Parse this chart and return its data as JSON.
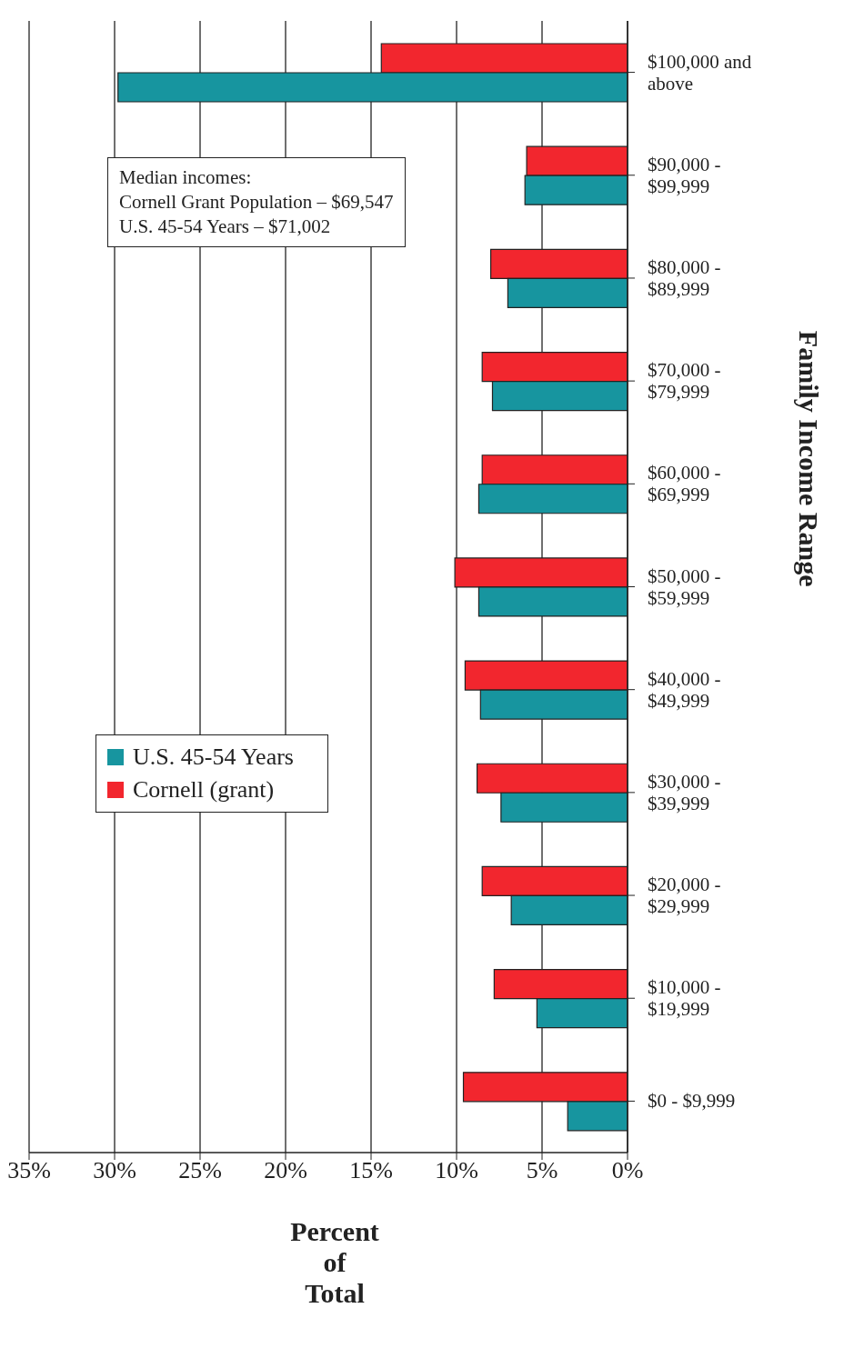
{
  "chart_data": {
    "type": "bar",
    "orientation": "horizontal",
    "xlabel": "Percent\nof\nTotal",
    "ylabel": "Family Income Range",
    "categories": [
      "$100,000 and above",
      "$90,000 - $99,999",
      "$80,000 - $89,999",
      "$70,000 - $79,999",
      "$60,000 - $69,999",
      "$50,000 - $59,999",
      "$40,000 - $49,999",
      "$30,000 - $39,999",
      "$20,000 - $29,999",
      "$10,000 - $19,999",
      "$0 - $9,999"
    ],
    "series": [
      {
        "name": "U.S. 45-54 Years",
        "color": "#17959f",
        "values": [
          29.8,
          6.0,
          7.0,
          7.9,
          8.7,
          8.7,
          8.6,
          7.4,
          6.8,
          5.3,
          3.5
        ]
      },
      {
        "name": "Cornell (grant)",
        "color": "#f2262e",
        "values": [
          14.4,
          5.9,
          8.0,
          8.5,
          8.5,
          10.1,
          9.5,
          8.8,
          8.5,
          7.8,
          9.6
        ]
      }
    ],
    "xlim": [
      35,
      0
    ],
    "xticks": [
      {
        "value": 35,
        "label": "35%"
      },
      {
        "value": 30,
        "label": "30%"
      },
      {
        "value": 25,
        "label": "25%"
      },
      {
        "value": 20,
        "label": "20%"
      },
      {
        "value": 15,
        "label": "15%"
      },
      {
        "value": 10,
        "label": "10%"
      },
      {
        "value": 5,
        "label": "5%"
      },
      {
        "value": 0,
        "label": "0%"
      }
    ],
    "grid": "x",
    "legend": "left",
    "annotations": [
      "Median incomes:\nCornell Grant Population – $69,547\nU.S. 45-54 Years – $71,002"
    ]
  }
}
